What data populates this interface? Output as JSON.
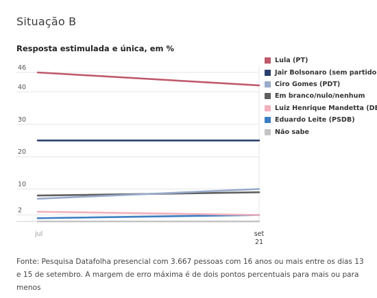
{
  "heading": "Situação B",
  "chart_data": {
    "type": "line",
    "title": "Resposta estimulada e única, em %",
    "xlabel": "",
    "ylabel": "",
    "x_categories": [
      "jul",
      "set 21"
    ],
    "x_tick_labels": [
      {
        "lines": [
          "jul"
        ]
      },
      {
        "lines": [
          "set",
          "21"
        ]
      }
    ],
    "y_ticks": [
      2,
      10,
      20,
      30,
      40,
      46
    ],
    "ylim": [
      0,
      46
    ],
    "grid": true,
    "legend_position": "right",
    "series": [
      {
        "name": "Lula (PT)",
        "color": "#c0596b",
        "values": [
          46,
          42
        ]
      },
      {
        "name": "Jair Bolsonaro (sem partido)",
        "color": "#2c3e6e",
        "values": [
          25,
          25
        ]
      },
      {
        "name": "Ciro Gomes (PDT)",
        "color": "#98abcb",
        "values": [
          7,
          10
        ]
      },
      {
        "name": "Em branco/nulo/nenhum",
        "color": "#5f5f5f",
        "values": [
          8,
          9
        ]
      },
      {
        "name": "Luiz Henrique Mandetta (DEM)",
        "color": "#f0b1bd",
        "values": [
          3,
          2
        ]
      },
      {
        "name": "Eduardo Leite (PSDB)",
        "color": "#3b7dc0",
        "values": [
          1,
          2
        ]
      },
      {
        "name": "Não sabe",
        "color": "#c4c4c4",
        "values": [
          0,
          0
        ]
      }
    ]
  },
  "source": "Fonte: Pesquisa Datafolha presencial com 3.667 pessoas com 16 anos ou mais entre os dias 13 e 15 de setembro. A margem de erro máxima é de dois pontos percentuais para mais ou para menos"
}
